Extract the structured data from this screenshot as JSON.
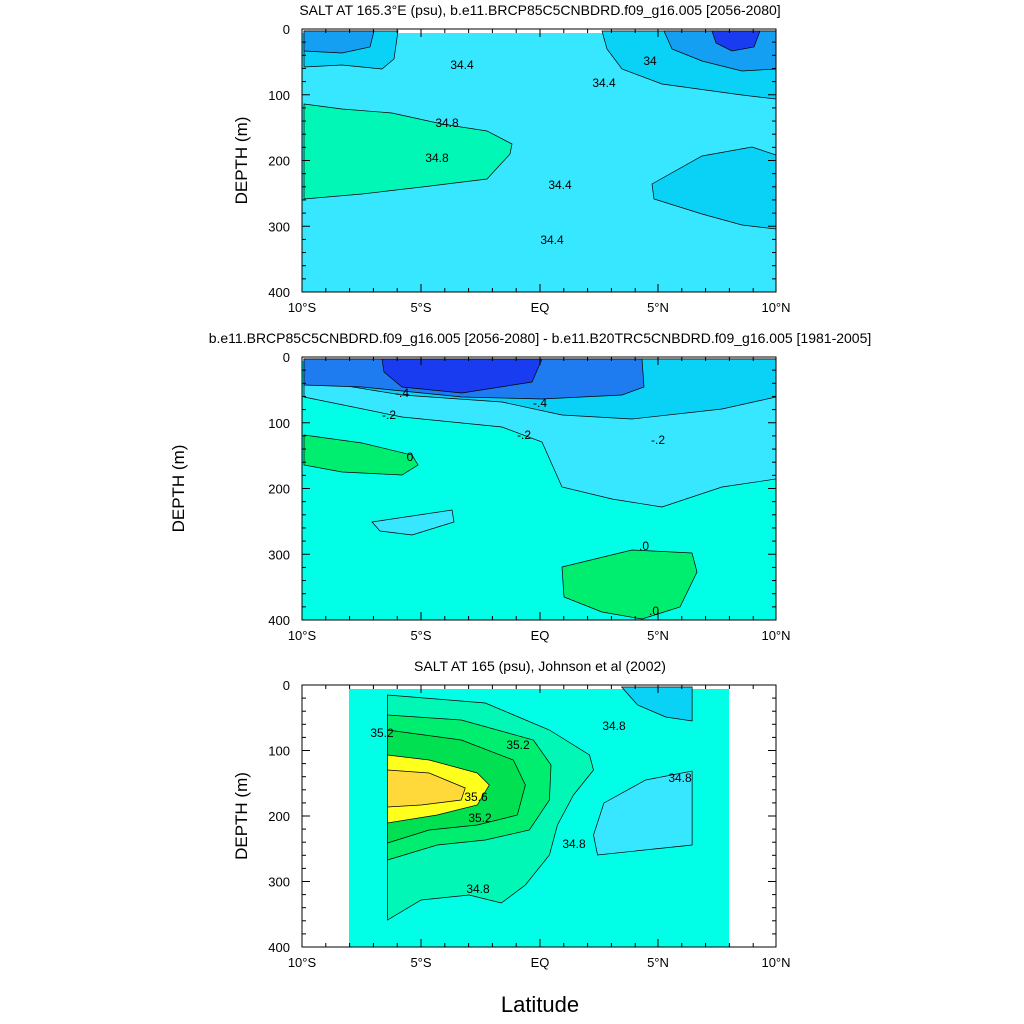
{
  "figure": {
    "xlabel": "Latitude",
    "palette": {
      "blue_dark": "#1a3cf0",
      "blue": "#1f7bf0",
      "blue_mid": "#159ff2",
      "sky": "#0ad2f6",
      "cyan": "#37e7ff",
      "aqua": "#00ffe6",
      "mint": "#00f7b5",
      "green_light": "#00ee70",
      "green": "#00e050",
      "yellow": "#ffff1e",
      "gold": "#ffd83a",
      "contour": "#000000"
    }
  },
  "chart_data": [
    {
      "type": "heatmap",
      "title": "SALT AT 165.3°E (psu), b.e11.BRCP85C5CNBDRD.f09_g16.005 [2056-2080]",
      "ylabel": "DEPTH (m)",
      "xlabel": "",
      "x_range": [
        -10,
        10
      ],
      "y_range": [
        0,
        400
      ],
      "y_inverted": true,
      "x_ticks": [
        "10°S",
        "5°S",
        "EQ",
        "5°N",
        "10°N"
      ],
      "y_ticks": [
        "0",
        "100",
        "200",
        "300",
        "400"
      ],
      "contour_labels": [
        "34.4",
        "34.4",
        "34.8",
        "34.8",
        "34",
        "34.4",
        "34.4"
      ],
      "data_extent_lat": [
        -10,
        10
      ],
      "data_extent_depth": [
        5,
        400
      ],
      "regions": [
        {
          "name": "base",
          "color": "cyan"
        },
        {
          "name": "34.8-35.0 core",
          "color": "mint"
        },
        {
          "name": "34.0-34.4 west surface",
          "color": "sky"
        },
        {
          "name": "<34.0 west surface",
          "color": "blue_mid"
        },
        {
          "name": "34.0-34.4 east surface",
          "color": "sky"
        },
        {
          "name": "<34.0 east surface",
          "color": "blue_mid"
        },
        {
          "name": "<33.6 east surface",
          "color": "blue_dark"
        },
        {
          "name": "34.0-34.4 east subsurface",
          "color": "sky"
        }
      ]
    },
    {
      "type": "heatmap",
      "title": "b.e11.BRCP85C5CNBDRD.f09_g16.005 [2056-2080] - b.e11.B20TRC5CNBDRD.f09_g16.005 [1981-2005]",
      "ylabel": "DEPTH (m)",
      "xlabel": "",
      "x_range": [
        -10,
        10
      ],
      "y_range": [
        0,
        400
      ],
      "y_inverted": true,
      "x_ticks": [
        "10°S",
        "5°S",
        "EQ",
        "5°N",
        "10°N"
      ],
      "y_ticks": [
        "0",
        "100",
        "200",
        "300",
        "400"
      ],
      "contour_labels": [
        "-.4",
        "-.4",
        "-.2",
        "-.2",
        "-.2",
        "0",
        ".0",
        ".0"
      ],
      "data_extent_lat": [
        -10,
        10
      ],
      "data_extent_depth": [
        5,
        400
      ],
      "regions": [
        {
          "name": "base",
          "color": "aqua"
        },
        {
          "name": "-0.2..0 band",
          "color": "cyan"
        },
        {
          "name": "-0.4..-0.2 band",
          "color": "sky"
        },
        {
          "name": "<-0.4 surface",
          "color": "blue"
        },
        {
          "name": "<-0.6 surface core",
          "color": "blue_dark"
        },
        {
          "name": ">0 west lens",
          "color": "green_light"
        },
        {
          "name": "-0.2..0 small lens",
          "color": "cyan"
        },
        {
          "name": ">0 deep lens",
          "color": "green_light"
        }
      ]
    },
    {
      "type": "heatmap",
      "title": "SALT AT 165 (psu), Johnson et al (2002)",
      "ylabel": "DEPTH (m)",
      "xlabel": "Latitude",
      "x_range": [
        -10,
        10
      ],
      "y_range": [
        0,
        400
      ],
      "y_inverted": true,
      "x_ticks": [
        "10°S",
        "5°S",
        "EQ",
        "5°N",
        "10°N"
      ],
      "y_ticks": [
        "0",
        "100",
        "200",
        "300",
        "400"
      ],
      "contour_labels": [
        "35.2",
        "35.2",
        "35.6",
        "35.2",
        "34.8",
        "34.8",
        "34.8",
        "34.8"
      ],
      "data_extent_lat": [
        -8,
        8
      ],
      "data_extent_depth": [
        5,
        400
      ],
      "regions": [
        {
          "name": "base",
          "color": "aqua"
        },
        {
          "name": "34.8-35.0 tongue",
          "color": "mint"
        },
        {
          "name": "35.2-35.4",
          "color": "green_light"
        },
        {
          "name": "35.4-35.6",
          "color": "green"
        },
        {
          "name": "35.6-35.8",
          "color": "yellow"
        },
        {
          "name": ">35.8 core",
          "color": "gold"
        },
        {
          "name": "<34.6 east pocket",
          "color": "cyan"
        },
        {
          "name": "<34.4 east surface",
          "color": "sky"
        }
      ]
    }
  ]
}
